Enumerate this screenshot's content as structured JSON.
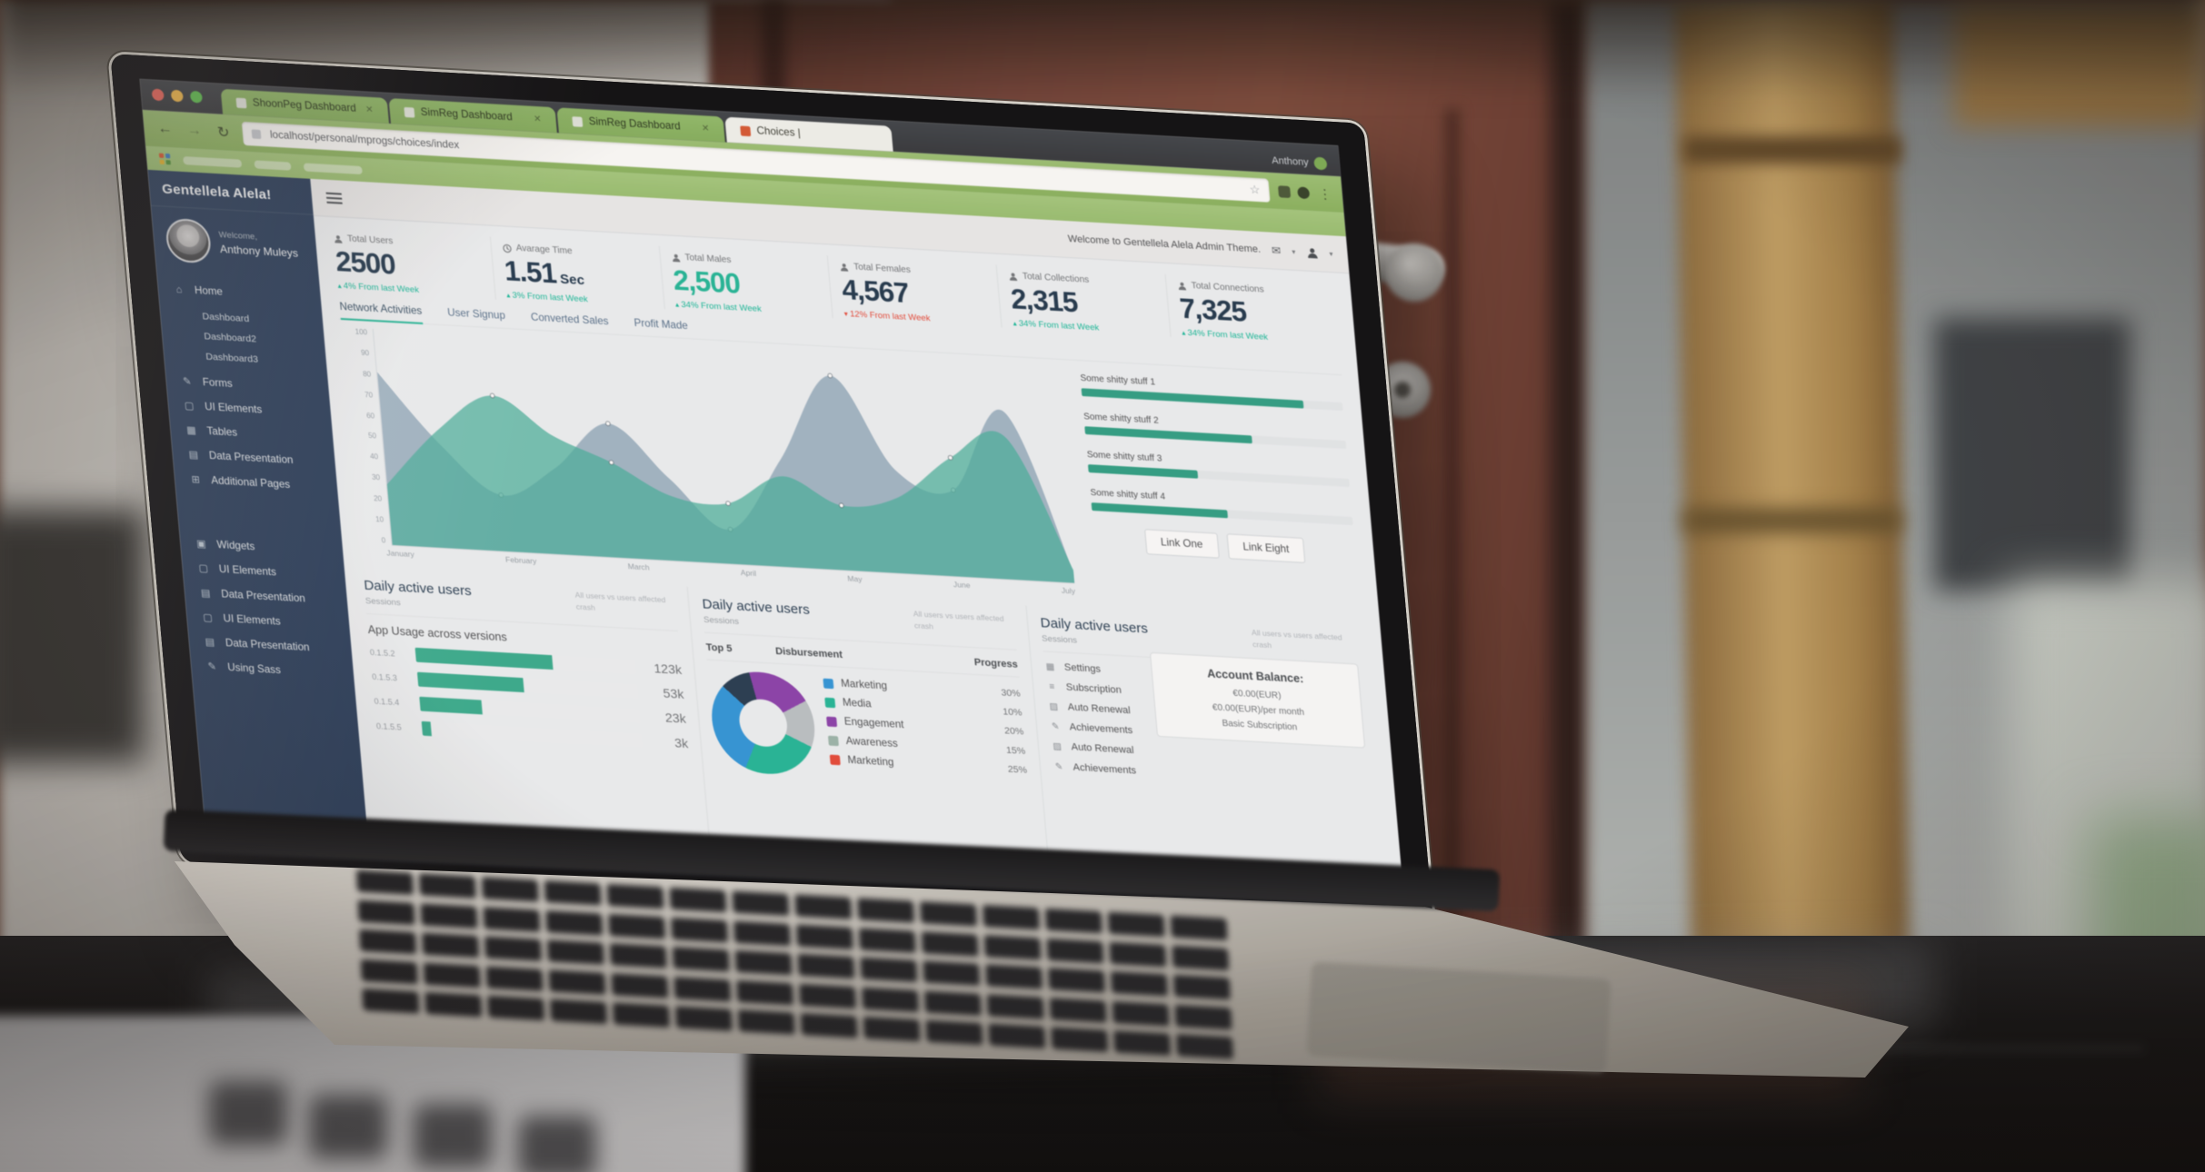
{
  "browser": {
    "profile_name": "Anthony",
    "url": "localhost/personal/mprogs/choices/index",
    "tabs": [
      {
        "title": "ShoonPeg Dashboard"
      },
      {
        "title": "SimReg Dashboard"
      },
      {
        "title": "SimReg Dashboard"
      },
      {
        "title": "Choices |"
      }
    ]
  },
  "topnav": {
    "welcome": "Welcome to Gentellela Alela Admin Theme."
  },
  "sidebar": {
    "logo": "Gentellela Alela!",
    "welcome": "Welcome,",
    "user": "Anthony Muleys",
    "home": {
      "label": "Home",
      "sub": [
        "Dashboard",
        "Dashboard2",
        "Dashboard3"
      ]
    },
    "top": [
      "Forms",
      "UI Elements",
      "Tables",
      "Data Presentation",
      "Additional Pages"
    ],
    "bottom": [
      "Widgets",
      "UI Elements",
      "Data Presentation",
      "UI Elements",
      "Data Presentation",
      "Using Sass"
    ]
  },
  "tiles": [
    {
      "label": "Total Users",
      "value": "2500",
      "delta": "4% From last Week",
      "trend": "up"
    },
    {
      "label": "Avarage Time",
      "value": "1.51",
      "unit": "Sec",
      "delta": "3% From last Week",
      "trend": "up"
    },
    {
      "label": "Total Males",
      "value": "2,500",
      "delta": "34% From last Week",
      "trend": "up",
      "highlight": true
    },
    {
      "label": "Total Females",
      "value": "4,567",
      "delta": "12% From last Week",
      "trend": "down"
    },
    {
      "label": "Total Collections",
      "value": "2,315",
      "delta": "34% From last Week",
      "trend": "up"
    },
    {
      "label": "Total Connections",
      "value": "7,325",
      "delta": "34% From last Week",
      "trend": "up"
    }
  ],
  "chart_tabs": {
    "items": [
      "Network Activities",
      "User Signup",
      "Converted Sales",
      "Profit Made"
    ],
    "active_index": 0
  },
  "progress_panel": {
    "items": [
      {
        "label": "Some shitty stuff 1",
        "percent": 85
      },
      {
        "label": "Some shitty stuff 2",
        "percent": 64
      },
      {
        "label": "Some shitty stuff 3",
        "percent": 42
      },
      {
        "label": "Some shitty stuff 4",
        "percent": 52
      }
    ],
    "buttons": [
      "Link One",
      "Link Eight"
    ]
  },
  "bottom_panels": {
    "shared_title": "Daily active users",
    "shared_subtitle": "Sessions",
    "shared_note": "All users vs users affected crash",
    "app_usage_title": "App Usage across versions",
    "table_headers": [
      "Top 5",
      "Disbursement",
      "Progress"
    ],
    "settings": [
      {
        "icon": "calendar-icon",
        "label": "Settings"
      },
      {
        "icon": "list-icon",
        "label": "Subscription"
      },
      {
        "icon": "chart-icon",
        "label": "Auto Renewal"
      },
      {
        "icon": "pencil-icon",
        "label": "Achievements"
      },
      {
        "icon": "chart-icon",
        "label": "Auto Renewal"
      },
      {
        "icon": "pencil-icon",
        "label": "Achievements"
      }
    ],
    "account_balance": {
      "title": "Account Balance:",
      "line1": "€0.00(EUR)",
      "line2": "€0.00(EUR)/per month",
      "line3": "Basic Subscription"
    }
  },
  "chart_data": [
    {
      "id": "network-activities-area",
      "type": "area",
      "title": "Network Activities",
      "x_labels": [
        "January",
        "February",
        "March",
        "April",
        "May",
        "June",
        "July"
      ],
      "x_points_per_label": 2,
      "y_ticks": [
        0,
        10,
        20,
        30,
        40,
        50,
        60,
        70,
        80,
        90,
        100
      ],
      "ylim": [
        0,
        100
      ],
      "grid": false,
      "legend_position": "none",
      "series": [
        {
          "name": "Series A (blue-gray area)",
          "color": "#87A1B5",
          "opacity": 0.72,
          "values": [
            80,
            48,
            26,
            40,
            62,
            38,
            16,
            50,
            90,
            48,
            40,
            78,
            5
          ]
        },
        {
          "name": "Series B (teal area)",
          "color": "#4FB3A0",
          "opacity": 0.75,
          "values": [
            28,
            55,
            72,
            55,
            44,
            30,
            28,
            42,
            30,
            35,
            55,
            66,
            6
          ]
        }
      ]
    },
    {
      "id": "app-usage-bars",
      "type": "bar",
      "title": "App Usage across versions",
      "categories": [
        "0.1.5.2",
        "0.1.5.3",
        "0.1.5.4",
        "0.1.5.5"
      ],
      "values": [
        123000,
        53000,
        23000,
        3000
      ],
      "value_labels": [
        "123k",
        "53k",
        "23k",
        "3k"
      ],
      "percents": [
        62,
        48,
        28,
        4
      ],
      "bar_color": "#3CAE90"
    },
    {
      "id": "disbursement-donut",
      "type": "pie",
      "labels": [
        "Marketing",
        "Media",
        "Engagement",
        "Awareness",
        "Marketing"
      ],
      "values": [
        30,
        10,
        20,
        15,
        25
      ],
      "legend_values": [
        "30%",
        "10%",
        "20%",
        "15%",
        "25%"
      ],
      "legend_colors": [
        "#3498DB",
        "#26B99A",
        "#8E44AD",
        "#9FB8AD",
        "#E74C3C"
      ],
      "slice_colors": [
        "#3498DB",
        "#2A3F54",
        "#8E44AD",
        "#BDC3C7",
        "#26B99A"
      ],
      "start_angle_deg": 205
    }
  ],
  "colors": {
    "accent_green": "#26B99A",
    "sidebar_navy": "#2B3F5C",
    "delta_up": "#1ABB9C",
    "delta_down": "#E74C3C",
    "browser_theme_green": "#94BD6D"
  }
}
